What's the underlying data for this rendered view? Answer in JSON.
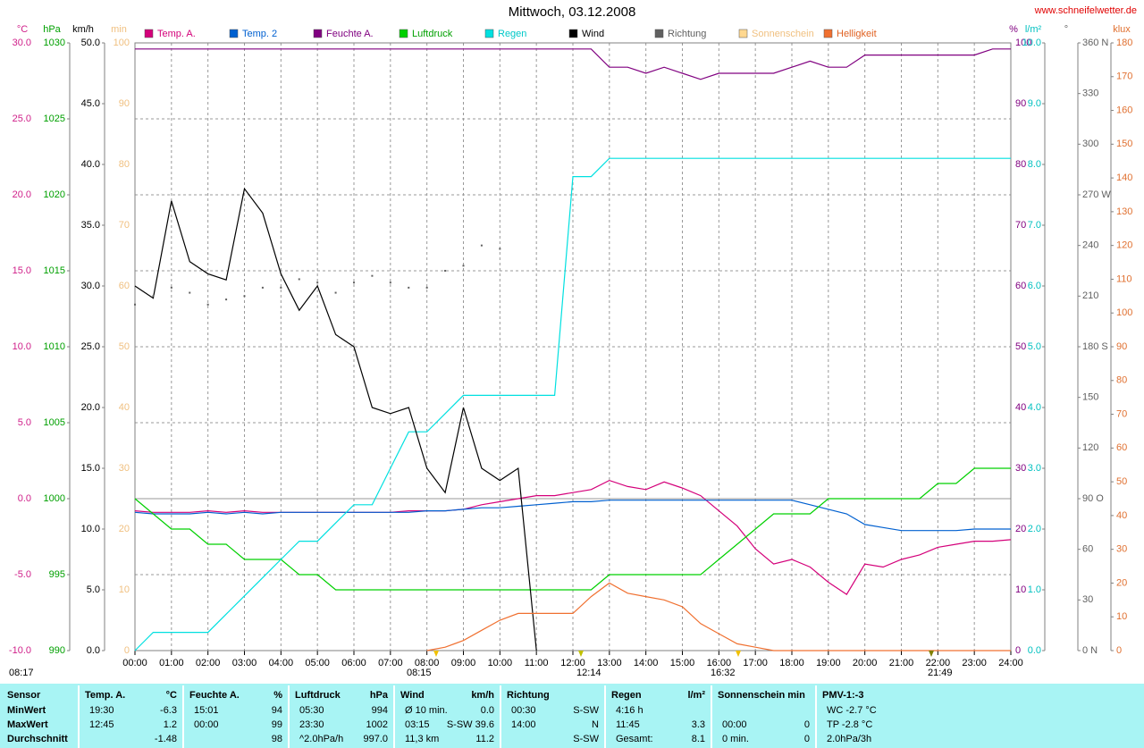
{
  "title": "Mittwoch, 03.12.2008",
  "site": "www.schneifelwetter.de",
  "chart_data": {
    "type": "line",
    "title": "Mittwoch, 03.12.2008",
    "xlim": [
      0,
      24
    ],
    "xticks": [
      {
        "value": 0,
        "label": "00:00"
      },
      {
        "value": 1,
        "label": "01:00"
      },
      {
        "value": 2,
        "label": "02:00"
      },
      {
        "value": 3,
        "label": "03:00"
      },
      {
        "value": 4,
        "label": "04:00"
      },
      {
        "value": 5,
        "label": "05:00"
      },
      {
        "value": 6,
        "label": "06:00"
      },
      {
        "value": 7,
        "label": "07:00"
      },
      {
        "value": 8,
        "label": "08:00"
      },
      {
        "value": 9,
        "label": "09:00"
      },
      {
        "value": 10,
        "label": "10:00"
      },
      {
        "value": 11,
        "label": "11:00"
      },
      {
        "value": 12,
        "label": "12:00"
      },
      {
        "value": 13,
        "label": "13:00"
      },
      {
        "value": 14,
        "label": "14:00"
      },
      {
        "value": 15,
        "label": "15:00"
      },
      {
        "value": 16,
        "label": "16:00"
      },
      {
        "value": 17,
        "label": "17:00"
      },
      {
        "value": 18,
        "label": "18:00"
      },
      {
        "value": 19,
        "label": "19:00"
      },
      {
        "value": 20,
        "label": "20:00"
      },
      {
        "value": 21,
        "label": "21:00"
      },
      {
        "value": 22,
        "label": "22:00"
      },
      {
        "value": 23,
        "label": "23:00"
      },
      {
        "value": 24,
        "label": "24:00"
      }
    ],
    "grid": true,
    "axes": [
      {
        "unit": "°C",
        "color": "#d0208a",
        "grid": true,
        "lim": [
          -10,
          30
        ],
        "ticks": [
          {
            "value": -10,
            "label": "-10.0"
          },
          {
            "value": -5,
            "label": "-5.0"
          },
          {
            "value": 0,
            "label": "0.0"
          },
          {
            "value": 5,
            "label": "5.0"
          },
          {
            "value": 10,
            "label": "10.0"
          },
          {
            "value": 15,
            "label": "15.0"
          },
          {
            "value": 20,
            "label": "20.0"
          },
          {
            "value": 25,
            "label": "25.0"
          },
          {
            "value": 30,
            "label": "30.0"
          }
        ]
      },
      {
        "unit": "hPa",
        "color": "#00a000",
        "grid": false,
        "lim": [
          990,
          1030
        ],
        "ticks": [
          990,
          995,
          1000,
          1005,
          1010,
          1015,
          1020,
          1025,
          1030
        ]
      },
      {
        "unit": "km/h",
        "color": "#000000",
        "grid": false,
        "lim": [
          0,
          50
        ],
        "ticks": [
          {
            "value": 0,
            "label": "0.0"
          },
          {
            "value": 5,
            "label": "5.0"
          },
          {
            "value": 10,
            "label": "10.0"
          },
          {
            "value": 15,
            "label": "15.0"
          },
          {
            "value": 20,
            "label": "20.0"
          },
          {
            "value": 25,
            "label": "25.0"
          },
          {
            "value": 30,
            "label": "30.0"
          },
          {
            "value": 35,
            "label": "35.0"
          },
          {
            "value": 40,
            "label": "40.0"
          },
          {
            "value": 45,
            "label": "45.0"
          },
          {
            "value": 50,
            "label": "50.0"
          }
        ]
      },
      {
        "unit": "min",
        "color": "#f0c080",
        "grid": false,
        "lim": [
          0,
          100
        ],
        "ticks": [
          0,
          10,
          20,
          30,
          40,
          50,
          60,
          70,
          80,
          90,
          100
        ]
      },
      {
        "unit": "%",
        "color": "#800080",
        "grid": false,
        "lim": [
          0,
          100
        ],
        "ticks": [
          0,
          10,
          20,
          30,
          40,
          50,
          60,
          70,
          80,
          90,
          100
        ]
      },
      {
        "unit": "l/m²",
        "color": "#00c0c0",
        "grid": false,
        "lim": [
          0,
          10
        ],
        "ticks": [
          {
            "value": 0,
            "label": "0.0"
          },
          {
            "value": 1,
            "label": "1.0"
          },
          {
            "value": 2,
            "label": "2.0"
          },
          {
            "value": 3,
            "label": "3.0"
          },
          {
            "value": 4,
            "label": "4.0"
          },
          {
            "value": 5,
            "label": "5.0"
          },
          {
            "value": 6,
            "label": "6.0"
          },
          {
            "value": 7,
            "label": "7.0"
          },
          {
            "value": 8,
            "label": "8.0"
          },
          {
            "value": 9,
            "label": "9.0"
          },
          {
            "value": 10,
            "label": "10.0"
          }
        ]
      },
      {
        "unit": "°",
        "color": "#606060",
        "grid": false,
        "lim": [
          0,
          360
        ],
        "ticks": [
          {
            "value": 0,
            "label": "0 N"
          },
          30,
          60,
          {
            "value": 90,
            "label": "90 O"
          },
          120,
          150,
          {
            "value": 180,
            "label": "180 S"
          },
          210,
          240,
          {
            "value": 270,
            "label": "270 W"
          },
          300,
          330,
          {
            "value": 360,
            "label": "360 N"
          }
        ]
      },
      {
        "unit": "klux",
        "color": "#e07030",
        "grid": false,
        "lim": [
          0,
          180
        ],
        "ticks": [
          0,
          10,
          20,
          30,
          40,
          50,
          60,
          70,
          80,
          90,
          100,
          110,
          120,
          130,
          140,
          150,
          160,
          170,
          180
        ]
      }
    ],
    "x": [
      0,
      0.5,
      1,
      1.5,
      2,
      2.5,
      3,
      3.5,
      4,
      4.5,
      5,
      5.5,
      6,
      6.5,
      7,
      7.5,
      8,
      8.5,
      9,
      9.5,
      10,
      10.5,
      11,
      11.5,
      12,
      12.5,
      13,
      13.5,
      14,
      14.5,
      15,
      15.5,
      16,
      16.5,
      17,
      17.5,
      18,
      18.5,
      19,
      19.5,
      20,
      20.5,
      21,
      21.5,
      22,
      22.5,
      23,
      23.5,
      24
    ],
    "series": [
      {
        "name": "Temp. A.",
        "color": "#d4007a",
        "axis": 0,
        "style": "line",
        "values": [
          -0.8,
          -0.9,
          -0.9,
          -0.9,
          -0.8,
          -0.9,
          -0.8,
          -0.9,
          -0.9,
          -0.9,
          -0.9,
          -0.9,
          -0.9,
          -0.9,
          -0.9,
          -0.8,
          -0.8,
          -0.8,
          -0.7,
          -0.4,
          -0.2,
          0.0,
          0.2,
          0.2,
          0.4,
          0.6,
          1.2,
          0.8,
          0.6,
          1.1,
          0.7,
          0.2,
          -0.8,
          -1.8,
          -3.3,
          -4.3,
          -4.0,
          -4.5,
          -5.5,
          -6.3,
          -4.3,
          -4.5,
          -4.0,
          -3.7,
          -3.2,
          -3.0,
          -2.8,
          -2.8,
          -2.7
        ]
      },
      {
        "name": "Temp. 2",
        "color": "#0060d0",
        "axis": 0,
        "style": "line",
        "values": [
          -0.9,
          -1.0,
          -1.0,
          -1.0,
          -0.9,
          -1.0,
          -0.9,
          -1.0,
          -0.9,
          -0.9,
          -0.9,
          -0.9,
          -0.9,
          -0.9,
          -0.9,
          -0.9,
          -0.8,
          -0.8,
          -0.7,
          -0.6,
          -0.6,
          -0.5,
          -0.4,
          -0.3,
          -0.2,
          -0.2,
          -0.1,
          -0.1,
          -0.1,
          -0.1,
          -0.1,
          -0.1,
          -0.1,
          -0.1,
          -0.1,
          -0.1,
          -0.1,
          -0.4,
          -0.7,
          -1.0,
          -1.7,
          -1.9,
          -2.1,
          -2.1,
          -2.1,
          -2.1,
          -2.0,
          -2.0,
          -2.0
        ]
      },
      {
        "name": "Feuchte A.",
        "color": "#800080",
        "axis": 4,
        "style": "line",
        "values": [
          99,
          99,
          99,
          99,
          99,
          99,
          99,
          99,
          99,
          99,
          99,
          99,
          99,
          99,
          99,
          99,
          99,
          99,
          99,
          99,
          99,
          99,
          99,
          99,
          99,
          99,
          96,
          96,
          95,
          96,
          95,
          94,
          95,
          95,
          95,
          95,
          96,
          97,
          96,
          96,
          98,
          98,
          98,
          98,
          98,
          98,
          98,
          99,
          99
        ]
      },
      {
        "name": "Luftdruck",
        "color": "#00d000",
        "axis": 1,
        "style": "line",
        "values": [
          1000,
          999,
          998,
          998,
          997,
          997,
          996,
          996,
          996,
          995,
          995,
          994,
          994,
          994,
          994,
          994,
          994,
          994,
          994,
          994,
          994,
          994,
          994,
          994,
          994,
          994,
          995,
          995,
          995,
          995,
          995,
          995,
          996,
          997,
          998,
          999,
          999,
          999,
          1000,
          1000,
          1000,
          1000,
          1000,
          1000,
          1001,
          1001,
          1002,
          1002,
          1002
        ]
      },
      {
        "name": "Regen",
        "color": "#00e0e0",
        "axis": 5,
        "style": "line",
        "values": [
          0,
          0.3,
          0.3,
          0.3,
          0.3,
          0.6,
          0.9,
          1.2,
          1.5,
          1.8,
          1.8,
          2.1,
          2.4,
          2.4,
          3.0,
          3.6,
          3.6,
          3.9,
          4.2,
          4.2,
          4.2,
          4.2,
          4.2,
          4.2,
          7.8,
          7.8,
          8.1,
          8.1,
          8.1,
          8.1,
          8.1,
          8.1,
          8.1,
          8.1,
          8.1,
          8.1,
          8.1,
          8.1,
          8.1,
          8.1,
          8.1,
          8.1,
          8.1,
          8.1,
          8.1,
          8.1,
          8.1,
          8.1,
          8.1
        ]
      },
      {
        "name": "Wind",
        "color": "#000000",
        "axis": 2,
        "style": "line",
        "values": [
          30,
          29,
          37,
          32,
          31,
          30.5,
          38,
          36,
          31,
          28,
          30,
          26,
          25,
          20,
          19.5,
          20,
          15,
          13,
          20,
          15,
          14,
          15,
          0,
          null,
          null,
          null,
          null,
          null,
          null,
          null,
          null,
          null,
          null,
          null,
          null,
          null,
          null,
          null,
          null,
          null,
          null,
          null,
          null,
          null,
          null,
          null,
          null,
          null,
          null
        ]
      },
      {
        "name": "Richtung",
        "color": "#606060",
        "axis": 6,
        "style": "dots",
        "values": [
          205,
          210,
          215,
          212,
          205,
          208,
          210,
          215,
          215,
          220,
          218,
          212,
          218,
          222,
          218,
          215,
          215,
          225,
          228,
          240,
          238,
          null,
          null,
          null,
          null,
          null,
          null,
          null,
          null,
          null,
          null,
          null,
          null,
          null,
          null,
          null,
          null,
          null,
          null,
          null,
          null,
          null,
          null,
          null,
          null,
          null,
          null,
          null,
          null
        ]
      },
      {
        "name": "Sonnenschein",
        "color": "#ffd890",
        "axis": 3,
        "style": "line",
        "values": [
          null,
          null,
          null,
          null,
          null,
          null,
          null,
          null,
          null,
          null,
          null,
          null,
          null,
          null,
          null,
          null,
          null,
          null,
          null,
          null,
          null,
          null,
          null,
          null,
          null,
          null,
          null,
          null,
          null,
          null,
          null,
          null,
          null,
          null,
          null,
          null,
          null,
          null,
          null,
          null,
          null,
          null,
          null,
          null,
          null,
          null,
          null,
          null,
          null
        ]
      },
      {
        "name": "Helligkeit",
        "color": "#f07030",
        "axis": 7,
        "style": "line",
        "values": [
          null,
          null,
          null,
          null,
          null,
          null,
          null,
          null,
          null,
          null,
          null,
          null,
          null,
          null,
          null,
          null,
          0,
          1,
          3,
          6,
          9,
          11,
          11,
          11,
          11,
          16,
          20,
          17,
          16,
          15,
          13,
          8,
          5,
          2,
          1,
          0,
          0,
          0,
          0,
          0,
          0,
          0,
          0,
          0,
          0,
          0,
          0,
          0,
          0
        ]
      }
    ],
    "annotations": [
      "08:17",
      "08:15",
      "12:14",
      "16:32",
      "21:49"
    ]
  },
  "table": {
    "sensor_header": "Sensor",
    "row_labels": [
      "MinWert",
      "MaxWert",
      "Durchschnitt"
    ],
    "columns": [
      {
        "title": "Temp. A.",
        "unit": "°C",
        "rows": [
          [
            "19:30",
            "-6.3"
          ],
          [
            "12:45",
            "1.2"
          ],
          [
            null,
            "-1.48"
          ]
        ]
      },
      {
        "title": "Feuchte A.",
        "unit": "%",
        "rows": [
          [
            "15:01",
            "94"
          ],
          [
            "00:00",
            "99"
          ],
          [
            null,
            "98"
          ]
        ]
      },
      {
        "title": "Luftdruck",
        "unit": "hPa",
        "rows": [
          [
            "05:30",
            "994"
          ],
          [
            "23:30",
            "1002"
          ],
          [
            "^2.0hPa/h",
            "997.0"
          ]
        ]
      },
      {
        "title": "Wind",
        "unit": "km/h",
        "rows": [
          [
            "Ø 10 min.",
            "0.0"
          ],
          [
            "03:15",
            "S-SW 39.6"
          ],
          [
            "11,3 km",
            "11.2"
          ]
        ]
      },
      {
        "title": "Richtung",
        "unit": null,
        "rows": [
          [
            "00:30",
            "S-SW"
          ],
          [
            "14:00",
            "N"
          ],
          [
            null,
            "S-SW"
          ]
        ]
      },
      {
        "title": "Regen",
        "unit": "l/m²",
        "rows": [
          [
            "4:16 h",
            null
          ],
          [
            "11:45",
            "3.3"
          ],
          [
            "Gesamt:",
            "8.1"
          ]
        ]
      },
      {
        "title": "Sonnenschein min",
        "unit": null,
        "rows": [
          [
            null,
            null
          ],
          [
            "00:00",
            "0"
          ],
          [
            "0 min.",
            "0"
          ]
        ]
      },
      {
        "title": "PMV-1:-3",
        "unit": null,
        "rows": [
          [
            "WC -2.7 °C",
            null
          ],
          [
            "TP -2.8 °C",
            null
          ],
          [
            "2.0hPa/3h",
            null
          ]
        ]
      }
    ]
  }
}
